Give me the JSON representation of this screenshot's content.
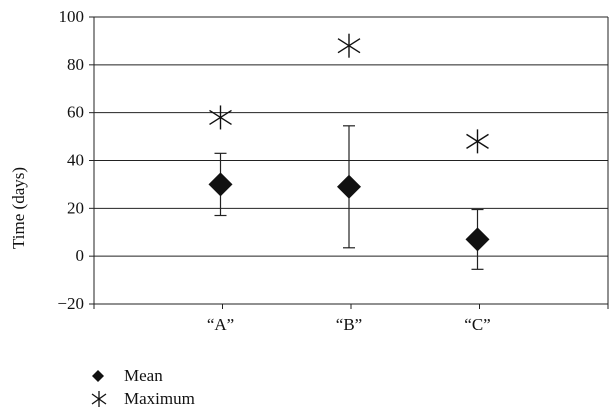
{
  "chart_data": {
    "type": "scatter",
    "title": "",
    "xlabel": "",
    "ylabel": "Time (days)",
    "categories": [
      "“A”",
      "“B”",
      "“C”"
    ],
    "ylim": [
      -20,
      100
    ],
    "yticks": [
      -20,
      0,
      20,
      40,
      60,
      80,
      100
    ],
    "grid": true,
    "series": [
      {
        "name": "Mean",
        "marker": "diamond",
        "color": "#111111",
        "values": [
          30,
          29,
          7
        ],
        "error_low": [
          17,
          3.5,
          -5.5
        ],
        "error_high": [
          43,
          54.5,
          19.5
        ]
      },
      {
        "name": "Maximum",
        "marker": "asterisk",
        "color": "#111111",
        "values": [
          58,
          88,
          48
        ]
      }
    ],
    "legend_position": "bottom-left"
  }
}
